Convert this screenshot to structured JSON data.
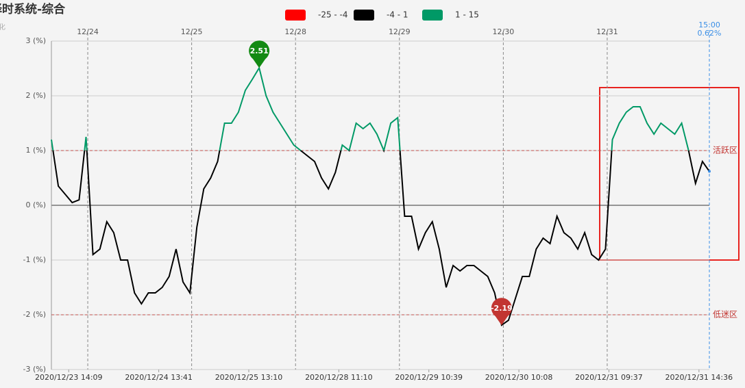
{
  "chart_data": {
    "type": "line",
    "title": "择时系统-综合",
    "subtitle": "化",
    "legend": [
      {
        "name": "-25 - -4",
        "color": "#ff0000",
        "range": [
          -25,
          -4
        ]
      },
      {
        "name": "-4 - 1",
        "color": "#000000",
        "range": [
          -4,
          1
        ]
      },
      {
        "name": "1 - 15",
        "color": "#009966",
        "range": [
          1,
          15
        ]
      }
    ],
    "x": [
      0,
      2,
      4,
      6,
      8,
      10,
      12,
      14,
      16,
      18,
      20,
      22,
      24,
      26,
      28,
      30,
      32,
      34,
      36,
      38,
      40,
      42,
      44,
      46,
      48,
      50,
      52,
      54,
      56,
      58,
      60,
      62,
      64,
      66,
      68,
      70,
      72,
      74,
      76,
      78,
      80,
      82,
      84,
      86,
      88,
      90,
      92,
      94,
      96,
      98,
      100,
      102,
      104,
      106,
      108,
      110,
      112,
      114,
      116,
      118,
      120,
      122,
      124,
      126,
      128,
      130,
      132,
      134,
      136,
      138,
      140,
      142,
      144,
      146,
      148,
      150,
      152,
      154,
      156,
      158,
      160,
      162,
      164,
      166,
      168,
      170,
      172,
      174,
      176,
      178,
      180,
      182,
      184,
      186,
      188,
      190
    ],
    "series": [
      {
        "name": "综合",
        "values": [
          1.2,
          0.35,
          0.2,
          0.05,
          0.1,
          1.25,
          -0.9,
          -0.8,
          -0.3,
          -0.5,
          -1.0,
          -1.0,
          -1.6,
          -1.8,
          -1.6,
          -1.6,
          -1.5,
          -1.3,
          -0.8,
          -1.4,
          -1.6,
          -0.4,
          0.3,
          0.5,
          0.8,
          1.5,
          1.5,
          1.7,
          2.1,
          2.3,
          2.51,
          2.0,
          1.7,
          1.5,
          1.3,
          1.1,
          1.0,
          0.9,
          0.8,
          0.5,
          0.3,
          0.6,
          1.1,
          1.0,
          1.5,
          1.4,
          1.5,
          1.3,
          1.0,
          1.5,
          1.6,
          -0.2,
          -0.2,
          -0.8,
          -0.5,
          -0.3,
          -0.8,
          -1.5,
          -1.1,
          -1.2,
          -1.1,
          -1.1,
          -1.2,
          -1.3,
          -1.6,
          -2.19,
          -2.1,
          -1.7,
          -1.3,
          -1.3,
          -0.8,
          -0.6,
          -0.7,
          -0.2,
          -0.5,
          -0.6,
          -0.8,
          -0.5,
          -0.9,
          -1.0,
          -0.8,
          1.2,
          1.5,
          1.7,
          1.8,
          1.8,
          1.5,
          1.3,
          1.5,
          1.4,
          1.3,
          1.5,
          1.0,
          0.4,
          0.8,
          0.62
        ]
      }
    ],
    "xlim": [
      0,
      190
    ],
    "ylim": [
      -3,
      3
    ],
    "yticks": [
      {
        "value": -3,
        "label": "-3 (%)"
      },
      {
        "value": -2,
        "label": "-2 (%)"
      },
      {
        "value": -1,
        "label": "-1 (%)"
      },
      {
        "value": 0,
        "label": "0 (%)"
      },
      {
        "value": 1,
        "label": "1 (%)"
      },
      {
        "value": 2,
        "label": "2 (%)"
      },
      {
        "value": 3,
        "label": "3 (%)"
      }
    ],
    "xticks_top": [
      {
        "value": 10.5,
        "label": "12/24"
      },
      {
        "value": 40.5,
        "label": "12/25"
      },
      {
        "value": 70.5,
        "label": "12/28"
      },
      {
        "value": 100.5,
        "label": "12/29"
      },
      {
        "value": 130.5,
        "label": "12/30"
      },
      {
        "value": 160.5,
        "label": "12/31"
      }
    ],
    "xticks": [
      {
        "value": 5,
        "label": "2020/12/23 14:09"
      },
      {
        "value": 31,
        "label": "2020/12/24 13:41"
      },
      {
        "value": 57,
        "label": "2020/12/25 13:10"
      },
      {
        "value": 83,
        "label": "2020/12/28 11:10"
      },
      {
        "value": 109,
        "label": "2020/12/29 10:39"
      },
      {
        "value": 135,
        "label": "2020/12/30 10:08"
      },
      {
        "value": 161,
        "label": "2020/12/31 09:37"
      },
      {
        "value": 187,
        "label": "2020/12/31 14:36"
      }
    ],
    "reference_lines": [
      {
        "value": 1,
        "label": "活跃区"
      },
      {
        "value": -2,
        "label": "低迷区"
      }
    ],
    "annotations": [
      {
        "x": 60,
        "value": 2.51,
        "color": "#138a13"
      },
      {
        "x": 130,
        "value": -2.19,
        "color": "#c23531"
      }
    ],
    "cursor": {
      "x": 190,
      "time": "15:00",
      "value": {
        "value": 0.62,
        "label": "0.62%"
      }
    },
    "grid": true
  }
}
